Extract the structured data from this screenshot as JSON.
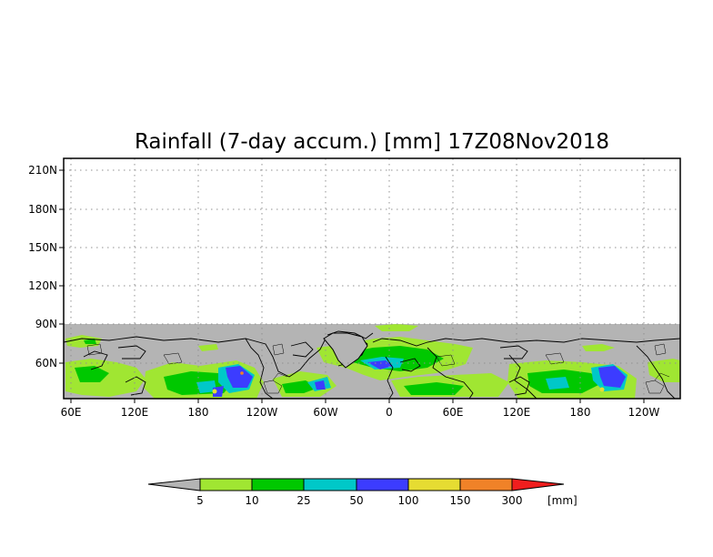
{
  "title": "Rainfall (7-day accum.) [mm] 17Z08Nov2018",
  "map": {
    "lat_ticks": [
      "210N",
      "180N",
      "150N",
      "120N",
      "90N",
      "60N"
    ],
    "lon_ticks": [
      "60E",
      "120E",
      "180",
      "120W",
      "60W",
      "0",
      "60E",
      "120E",
      "180",
      "120W"
    ],
    "no_data_color": "#b4b4b4",
    "grid": "dotted"
  },
  "colorbar": {
    "labels": [
      "5",
      "10",
      "25",
      "50",
      "100",
      "150",
      "300"
    ],
    "unit": "[mm]",
    "under_color": "#b4b4b4",
    "colors": [
      "#a0e632",
      "#00c800",
      "#00c8c8",
      "#3c3cff",
      "#e6dc32",
      "#f08228"
    ],
    "over_color": "#f01e1e"
  }
}
